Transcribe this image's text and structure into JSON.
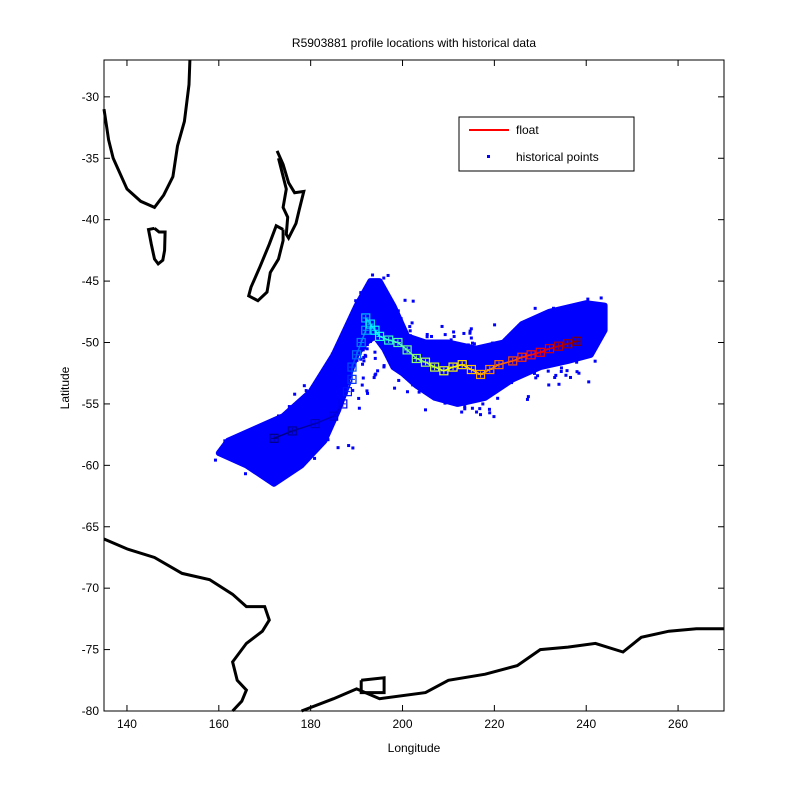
{
  "chart_data": {
    "type": "scatter",
    "title": "R5903881 profile locations with historical data",
    "xlabel": "Longitude",
    "ylabel": "Latitude",
    "xlim": [
      135,
      270
    ],
    "ylim": [
      -80,
      -27
    ],
    "xticks": [
      140,
      160,
      180,
      200,
      220,
      240,
      260
    ],
    "yticks": [
      -30,
      -35,
      -40,
      -45,
      -50,
      -55,
      -60,
      -65,
      -70,
      -75,
      -80
    ],
    "grid": false,
    "legend_position": "top-right",
    "legend": [
      {
        "label": "float",
        "color": "#ff0000",
        "style": "line"
      },
      {
        "label": "historical points",
        "color": "#0000ff",
        "style": "marker"
      }
    ],
    "float_track": {
      "color_scale": "jet (first profile blue, last profile red)",
      "lon": [
        172,
        176,
        181,
        185,
        187,
        188,
        189,
        189,
        190,
        191,
        192,
        192,
        193,
        194,
        195,
        197,
        199,
        201,
        203,
        205,
        207,
        209,
        211,
        213,
        215,
        217,
        219,
        221,
        224,
        226,
        228,
        230,
        232,
        234,
        236,
        238
      ],
      "lat": [
        -57.8,
        -57.2,
        -56.6,
        -56.0,
        -55.0,
        -54.0,
        -53.0,
        -52.0,
        -51.0,
        -50.0,
        -49.0,
        -48.0,
        -48.5,
        -49.0,
        -49.5,
        -49.8,
        -50.0,
        -50.6,
        -51.3,
        -51.6,
        -52.0,
        -52.3,
        -52.0,
        -51.8,
        -52.2,
        -52.6,
        -52.2,
        -51.8,
        -51.5,
        -51.2,
        -51.0,
        -50.8,
        -50.5,
        -50.3,
        -50.1,
        -49.9
      ]
    },
    "historical_points": {
      "color": "#0000ff",
      "region_outline_lon": [
        160,
        166,
        172,
        178,
        183,
        186,
        188,
        190,
        192,
        194,
        196,
        198,
        200,
        203,
        207,
        212,
        218,
        224,
        230,
        236,
        241,
        244,
        244,
        240,
        232,
        226,
        222,
        216,
        210,
        205,
        201,
        198,
        195,
        193,
        190,
        185,
        180,
        174,
        168,
        162
      ],
      "region_outline_lat": [
        -59,
        -60,
        -61.5,
        -60,
        -58,
        -55.5,
        -53,
        -51,
        -50,
        -49.5,
        -50.5,
        -52,
        -52.5,
        -53.5,
        -54.5,
        -55,
        -54.5,
        -53,
        -52,
        -51.5,
        -51,
        -49,
        -47,
        -46.8,
        -47.5,
        -48.5,
        -50,
        -50.5,
        -50,
        -50,
        -49.5,
        -47,
        -45,
        -45,
        -47,
        -51,
        -54,
        -56,
        -57,
        -58
      ]
    },
    "coastlines": "Australia, New Zealand and Antarctica outlines drawn in black"
  }
}
